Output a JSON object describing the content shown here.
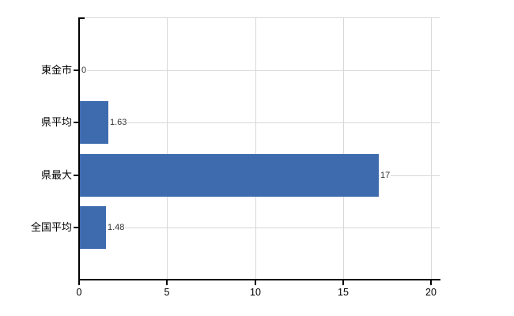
{
  "chart_data": {
    "type": "bar",
    "orientation": "horizontal",
    "title": "",
    "categories": [
      "東金市",
      "県平均",
      "県最大",
      "全国平均"
    ],
    "values": [
      0,
      1.63,
      17,
      1.48
    ],
    "value_labels": [
      "0",
      "1.63",
      "17",
      "1.48"
    ],
    "xticks": [
      0,
      5,
      10,
      15,
      20
    ],
    "xtick_labels": [
      "0",
      "5",
      "10",
      "15",
      "20"
    ],
    "xlim": [
      0,
      20
    ],
    "xlabel": "",
    "ylabel": "",
    "grid": true,
    "legend": false,
    "bar_color": "#3E6BAE",
    "grid_color": "#D8D8D8",
    "axis_color": "#000000",
    "value_label_color": "#333333",
    "tick_label_color": "#000000",
    "background_color": "#FFFFFF"
  }
}
